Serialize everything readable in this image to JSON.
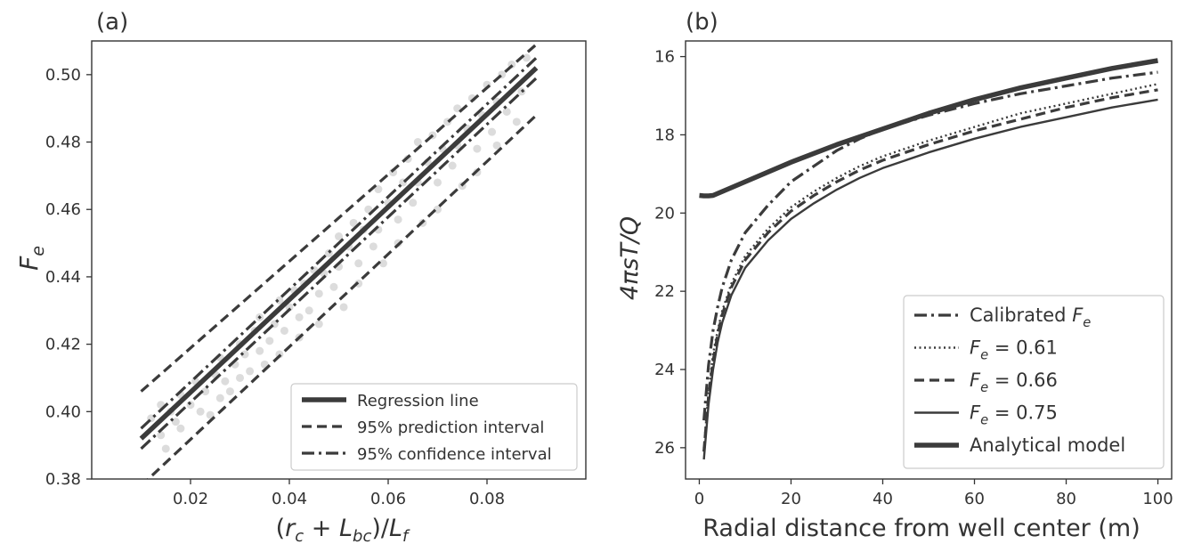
{
  "chart_data": [
    {
      "panel_label": "(a)",
      "type": "scatter",
      "xlabel": "(r_c + L_bc)/L_f",
      "ylabel": "F_e",
      "xlim": [
        0.0,
        0.1
      ],
      "ylim": [
        0.38,
        0.51
      ],
      "xticks": [
        0.02,
        0.04,
        0.06,
        0.08
      ],
      "yticks": [
        0.38,
        0.4,
        0.42,
        0.44,
        0.46,
        0.48,
        0.5
      ],
      "grid": false,
      "legend_position": "lower-right",
      "scatter_points": [
        [
          0.012,
          0.398
        ],
        [
          0.014,
          0.393
        ],
        [
          0.014,
          0.402
        ],
        [
          0.015,
          0.389
        ],
        [
          0.016,
          0.4
        ],
        [
          0.017,
          0.397
        ],
        [
          0.018,
          0.405
        ],
        [
          0.018,
          0.395
        ],
        [
          0.02,
          0.402
        ],
        [
          0.021,
          0.409
        ],
        [
          0.022,
          0.4
        ],
        [
          0.023,
          0.406
        ],
        [
          0.024,
          0.399
        ],
        [
          0.025,
          0.411
        ],
        [
          0.026,
          0.404
        ],
        [
          0.026,
          0.416
        ],
        [
          0.027,
          0.409
        ],
        [
          0.028,
          0.406
        ],
        [
          0.029,
          0.414
        ],
        [
          0.03,
          0.42
        ],
        [
          0.03,
          0.41
        ],
        [
          0.031,
          0.417
        ],
        [
          0.032,
          0.412
        ],
        [
          0.033,
          0.424
        ],
        [
          0.034,
          0.418
        ],
        [
          0.034,
          0.428
        ],
        [
          0.035,
          0.414
        ],
        [
          0.036,
          0.421
        ],
        [
          0.037,
          0.426
        ],
        [
          0.038,
          0.433
        ],
        [
          0.038,
          0.417
        ],
        [
          0.039,
          0.424
        ],
        [
          0.04,
          0.431
        ],
        [
          0.041,
          0.436
        ],
        [
          0.042,
          0.428
        ],
        [
          0.042,
          0.422
        ],
        [
          0.043,
          0.438
        ],
        [
          0.044,
          0.43
        ],
        [
          0.045,
          0.442
        ],
        [
          0.046,
          0.435
        ],
        [
          0.046,
          0.426
        ],
        [
          0.047,
          0.441
        ],
        [
          0.048,
          0.447
        ],
        [
          0.049,
          0.437
        ],
        [
          0.05,
          0.452
        ],
        [
          0.05,
          0.443
        ],
        [
          0.051,
          0.431
        ],
        [
          0.052,
          0.449
        ],
        [
          0.053,
          0.456
        ],
        [
          0.054,
          0.444
        ],
        [
          0.054,
          0.438
        ],
        [
          0.055,
          0.454
        ],
        [
          0.056,
          0.46
        ],
        [
          0.057,
          0.449
        ],
        [
          0.058,
          0.466
        ],
        [
          0.058,
          0.454
        ],
        [
          0.059,
          0.444
        ],
        [
          0.06,
          0.462
        ],
        [
          0.061,
          0.471
        ],
        [
          0.062,
          0.457
        ],
        [
          0.062,
          0.45
        ],
        [
          0.063,
          0.468
        ],
        [
          0.064,
          0.475
        ],
        [
          0.065,
          0.462
        ],
        [
          0.066,
          0.48
        ],
        [
          0.066,
          0.468
        ],
        [
          0.067,
          0.456
        ],
        [
          0.068,
          0.474
        ],
        [
          0.069,
          0.482
        ],
        [
          0.07,
          0.468
        ],
        [
          0.07,
          0.46
        ],
        [
          0.071,
          0.478
        ],
        [
          0.072,
          0.486
        ],
        [
          0.073,
          0.473
        ],
        [
          0.074,
          0.49
        ],
        [
          0.074,
          0.479
        ],
        [
          0.075,
          0.467
        ],
        [
          0.076,
          0.484
        ],
        [
          0.077,
          0.493
        ],
        [
          0.078,
          0.478
        ],
        [
          0.078,
          0.471
        ],
        [
          0.079,
          0.488
        ],
        [
          0.08,
          0.497
        ],
        [
          0.081,
          0.483
        ],
        [
          0.082,
          0.492
        ],
        [
          0.082,
          0.479
        ],
        [
          0.083,
          0.5
        ],
        [
          0.084,
          0.489
        ],
        [
          0.085,
          0.503
        ],
        [
          0.086,
          0.486
        ],
        [
          0.087,
          0.495
        ],
        [
          0.088,
          0.505
        ]
      ],
      "series": [
        {
          "name": "Regression line",
          "style": "solid-thick",
          "x": [
            0.01,
            0.09
          ],
          "y": [
            0.392,
            0.502
          ]
        },
        {
          "name": "95% prediction interval",
          "style": "dashed",
          "x": [
            0.01,
            0.09
          ],
          "y": [
            0.406,
            0.509
          ]
        },
        {
          "name": "95% prediction interval",
          "style": "dashed",
          "x": [
            0.01,
            0.09
          ],
          "y": [
            0.378,
            0.488
          ]
        },
        {
          "name": "95% confidence interval",
          "style": "dashdot",
          "x": [
            0.01,
            0.09
          ],
          "y": [
            0.395,
            0.505
          ]
        },
        {
          "name": "95% confidence interval",
          "style": "dashdot",
          "x": [
            0.01,
            0.09
          ],
          "y": [
            0.389,
            0.499
          ]
        }
      ],
      "legend": [
        {
          "label": "Regression line",
          "style": "solid-thick"
        },
        {
          "label": "95% prediction interval",
          "style": "dashed"
        },
        {
          "label": "95% confidence interval",
          "style": "dashdot"
        }
      ]
    },
    {
      "panel_label": "(b)",
      "type": "line",
      "xlabel": "Radial distance from well center (m)",
      "ylabel": "4πsT/Q",
      "xlim": [
        -3,
        103
      ],
      "ylim": [
        26.8,
        15.6
      ],
      "y_inverted": true,
      "xticks": [
        0,
        20,
        40,
        60,
        80,
        100
      ],
      "yticks": [
        16,
        18,
        20,
        22,
        24,
        26
      ],
      "grid": false,
      "legend_position": "lower-right",
      "series": [
        {
          "name": "Calibrated F_e",
          "style": "dashdot",
          "x": [
            1,
            2,
            3,
            4,
            5,
            7,
            10,
            15,
            20,
            25,
            30,
            35,
            40,
            50,
            60,
            70,
            80,
            90,
            100
          ],
          "y": [
            25.3,
            23.9,
            23.0,
            22.4,
            21.9,
            21.2,
            20.5,
            19.8,
            19.2,
            18.8,
            18.4,
            18.1,
            17.85,
            17.5,
            17.2,
            16.95,
            16.75,
            16.55,
            16.4
          ]
        },
        {
          "name": "F_e = 0.61",
          "style": "dotted",
          "x": [
            1,
            2,
            3,
            4,
            5,
            7,
            10,
            15,
            20,
            25,
            30,
            35,
            40,
            50,
            60,
            70,
            80,
            90,
            100
          ],
          "y": [
            26.0,
            24.6,
            23.6,
            23.0,
            22.5,
            21.8,
            21.1,
            20.4,
            19.85,
            19.45,
            19.1,
            18.8,
            18.55,
            18.15,
            17.8,
            17.45,
            17.2,
            16.95,
            16.7
          ]
        },
        {
          "name": "F_e = 0.66",
          "style": "dashed",
          "x": [
            1,
            2,
            3,
            4,
            5,
            7,
            10,
            15,
            20,
            25,
            30,
            35,
            40,
            50,
            60,
            70,
            80,
            90,
            100
          ],
          "y": [
            26.1,
            24.7,
            23.8,
            23.1,
            22.6,
            21.9,
            21.2,
            20.5,
            19.95,
            19.55,
            19.2,
            18.9,
            18.65,
            18.25,
            17.9,
            17.6,
            17.3,
            17.05,
            16.85
          ]
        },
        {
          "name": "F_e = 0.75",
          "style": "solid",
          "x": [
            1,
            2,
            3,
            4,
            5,
            7,
            10,
            15,
            20,
            25,
            30,
            35,
            40,
            50,
            60,
            70,
            80,
            90,
            100
          ],
          "y": [
            26.3,
            24.9,
            24.0,
            23.3,
            22.8,
            22.1,
            21.4,
            20.7,
            20.15,
            19.75,
            19.4,
            19.1,
            18.85,
            18.45,
            18.1,
            17.8,
            17.55,
            17.3,
            17.1
          ]
        },
        {
          "name": "Analytical model",
          "style": "solid-thick",
          "x": [
            0,
            1,
            2,
            3,
            5,
            10,
            20,
            30,
            40,
            50,
            60,
            70,
            80,
            90,
            100
          ],
          "y": [
            19.55,
            19.56,
            19.56,
            19.55,
            19.45,
            19.2,
            18.7,
            18.25,
            17.85,
            17.45,
            17.1,
            16.8,
            16.55,
            16.3,
            16.1
          ]
        }
      ],
      "legend": [
        {
          "label": "Calibrated F_e",
          "style": "dashdot"
        },
        {
          "label": "F_e = 0.61",
          "style": "dotted"
        },
        {
          "label": "F_e = 0.66",
          "style": "dashed"
        },
        {
          "label": "F_e = 0.75",
          "style": "solid"
        },
        {
          "label": "Analytical model",
          "style": "solid-thick"
        }
      ]
    }
  ],
  "colors": {
    "line": "#3b3b3b",
    "scatter": "#dcdcdc",
    "axis": "#333333",
    "text": "#333333"
  }
}
